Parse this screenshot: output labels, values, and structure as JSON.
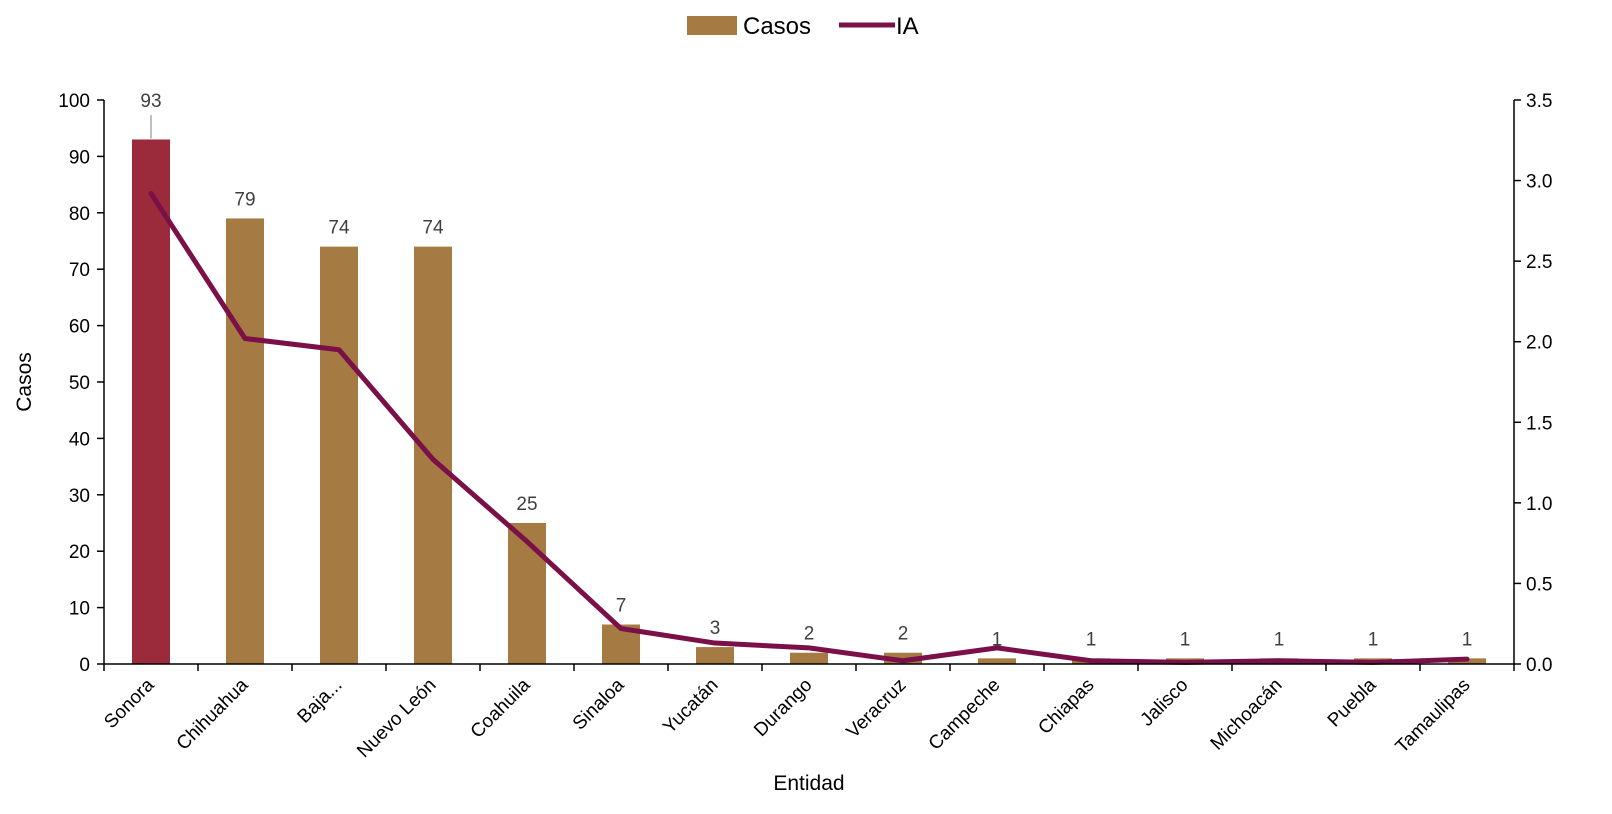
{
  "chart_data": {
    "type": "bar",
    "categories": [
      "Sonora",
      "Chihuahua",
      "Baja...",
      "Nuevo León",
      "Coahuila",
      "Sinaloa",
      "Yucatán",
      "Durango",
      "Veracruz",
      "Campeche",
      "Chiapas",
      "Jalisco",
      "Michoacán",
      "Puebla",
      "Tamaulipas"
    ],
    "series": [
      {
        "name": "Casos",
        "kind": "bar",
        "axis": "left",
        "values": [
          93,
          79,
          74,
          74,
          25,
          7,
          3,
          2,
          2,
          1,
          1,
          1,
          1,
          1,
          1
        ],
        "color": "#A67A43",
        "highlight_color": "#9B2B3A",
        "highlight_index": 0
      },
      {
        "name": "IA",
        "kind": "line",
        "axis": "right",
        "values": [
          2.92,
          2.02,
          1.95,
          1.27,
          0.76,
          0.22,
          0.13,
          0.1,
          0.02,
          0.1,
          0.02,
          0.01,
          0.02,
          0.01,
          0.03
        ],
        "color": "#7B1048"
      }
    ],
    "data_labels": [
      "93",
      "79",
      "74",
      "74",
      "25",
      "7",
      "3",
      "2",
      "2",
      "1",
      "1",
      "1",
      "1",
      "1",
      "1"
    ],
    "xlabel": "Entidad",
    "ylabel": "Casos",
    "y2label": "",
    "ylim": [
      0,
      100
    ],
    "yticks": [
      "0",
      "10",
      "20",
      "30",
      "40",
      "50",
      "60",
      "70",
      "80",
      "90",
      "100"
    ],
    "y2lim": [
      0,
      3.5
    ],
    "y2ticks": [
      "0.0",
      "0.5",
      "1.0",
      "1.5",
      "2.0",
      "2.5",
      "3.0",
      "3.5"
    ],
    "legend": {
      "placement": "top-center",
      "items": [
        {
          "label": "Casos",
          "symbol": "bar",
          "color": "#A67A43"
        },
        {
          "label": "IA",
          "symbol": "line",
          "color": "#7B1048"
        }
      ]
    },
    "grid": false
  }
}
